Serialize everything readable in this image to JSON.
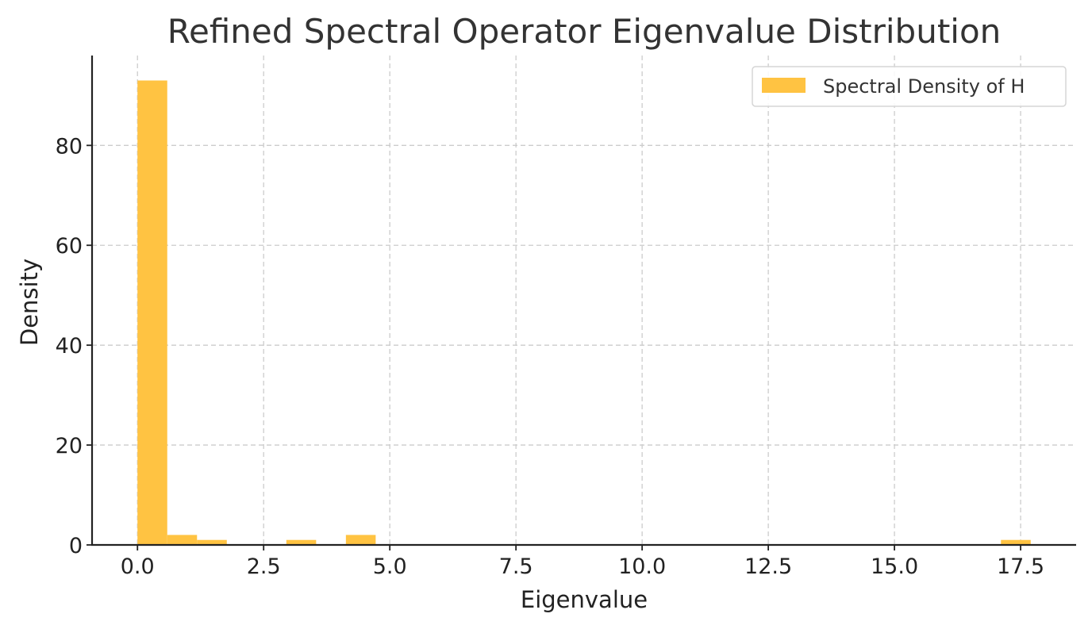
{
  "chart_data": {
    "type": "bar",
    "title": "Refined Spectral Operator Eigenvalue Distribution",
    "xlabel": "Eigenvalue",
    "ylabel": "Density",
    "xlim": [
      -0.9,
      18.6
    ],
    "ylim": [
      0,
      98
    ],
    "xticks": [
      0,
      2.5,
      5,
      7.5,
      10,
      12.5,
      15,
      17.5
    ],
    "xtick_labels": [
      "0.0",
      "2.5",
      "5.0",
      "7.5",
      "10.0",
      "12.5",
      "15.0",
      "17.5"
    ],
    "yticks": [
      0,
      20,
      40,
      60,
      80
    ],
    "ytick_labels": [
      "0",
      "20",
      "40",
      "60",
      "80"
    ],
    "grid": true,
    "legend_position": "top-right",
    "series": [
      {
        "name": "Spectral Density of H",
        "color": "#FFC342",
        "bins": [
          {
            "x0": 0.0,
            "x1": 0.59,
            "value": 93
          },
          {
            "x0": 0.59,
            "x1": 1.18,
            "value": 2
          },
          {
            "x0": 1.18,
            "x1": 1.77,
            "value": 1
          },
          {
            "x0": 2.95,
            "x1": 3.54,
            "value": 1
          },
          {
            "x0": 4.13,
            "x1": 4.72,
            "value": 2
          },
          {
            "x0": 17.11,
            "x1": 17.7,
            "value": 1
          }
        ]
      }
    ]
  }
}
